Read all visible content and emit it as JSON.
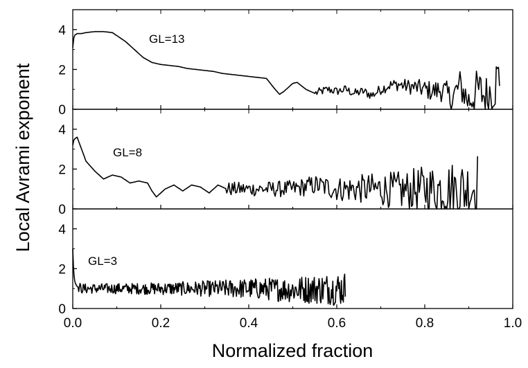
{
  "chart_data": {
    "type": "line",
    "xlabel": "Normalized fraction",
    "ylabel": "Local Avrami exponent",
    "xlim": [
      0.0,
      1.0
    ],
    "x_ticks": [
      "0.0",
      "0.2",
      "0.4",
      "0.6",
      "0.8",
      "1.0"
    ],
    "panels": [
      {
        "label": "GL=13",
        "ylim": [
          0,
          5
        ],
        "y_ticks": [
          "0",
          "2",
          "4"
        ],
        "end_x": 0.97,
        "noise_start": 0.55,
        "points": [
          [
            0.0,
            3.1
          ],
          [
            0.003,
            3.7
          ],
          [
            0.01,
            3.8
          ],
          [
            0.02,
            3.8
          ],
          [
            0.03,
            3.85
          ],
          [
            0.05,
            3.9
          ],
          [
            0.07,
            3.9
          ],
          [
            0.09,
            3.85
          ],
          [
            0.1,
            3.7
          ],
          [
            0.12,
            3.4
          ],
          [
            0.14,
            3.0
          ],
          [
            0.16,
            2.6
          ],
          [
            0.18,
            2.35
          ],
          [
            0.2,
            2.25
          ],
          [
            0.22,
            2.2
          ],
          [
            0.24,
            2.15
          ],
          [
            0.26,
            2.05
          ],
          [
            0.28,
            2.0
          ],
          [
            0.3,
            1.95
          ],
          [
            0.32,
            1.9
          ],
          [
            0.34,
            1.8
          ],
          [
            0.36,
            1.75
          ],
          [
            0.38,
            1.7
          ],
          [
            0.4,
            1.65
          ],
          [
            0.42,
            1.6
          ],
          [
            0.44,
            1.55
          ],
          [
            0.46,
            1.0
          ],
          [
            0.47,
            0.75
          ],
          [
            0.48,
            0.9
          ],
          [
            0.5,
            1.3
          ],
          [
            0.51,
            1.35
          ],
          [
            0.53,
            1.0
          ],
          [
            0.55,
            0.8
          ],
          [
            0.58,
            1.0
          ],
          [
            0.6,
            0.9
          ],
          [
            0.62,
            1.0
          ],
          [
            0.64,
            0.8
          ],
          [
            0.66,
            0.9
          ],
          [
            0.68,
            0.7
          ],
          [
            0.7,
            1.0
          ],
          [
            0.72,
            1.2
          ],
          [
            0.74,
            1.25
          ],
          [
            0.76,
            1.15
          ],
          [
            0.78,
            1.1
          ],
          [
            0.8,
            1.0
          ],
          [
            0.82,
            0.9
          ],
          [
            0.84,
            1.0
          ],
          [
            0.86,
            0.5
          ],
          [
            0.88,
            1.2
          ],
          [
            0.9,
            0.4
          ],
          [
            0.92,
            1.0
          ],
          [
            0.94,
            0.6
          ],
          [
            0.96,
            1.3
          ],
          [
            0.97,
            1.6
          ]
        ]
      },
      {
        "label": "GL=8",
        "ylim": [
          0,
          5
        ],
        "y_ticks": [
          "0",
          "2",
          "4"
        ],
        "end_x": 0.92,
        "noise_start": 0.35,
        "points": [
          [
            0.0,
            3.2
          ],
          [
            0.003,
            3.5
          ],
          [
            0.01,
            3.6
          ],
          [
            0.02,
            3.0
          ],
          [
            0.03,
            2.4
          ],
          [
            0.05,
            1.9
          ],
          [
            0.07,
            1.5
          ],
          [
            0.09,
            1.7
          ],
          [
            0.11,
            1.6
          ],
          [
            0.13,
            1.3
          ],
          [
            0.15,
            1.4
          ],
          [
            0.17,
            1.3
          ],
          [
            0.18,
            0.9
          ],
          [
            0.19,
            0.6
          ],
          [
            0.21,
            1.0
          ],
          [
            0.23,
            1.2
          ],
          [
            0.25,
            0.9
          ],
          [
            0.27,
            1.2
          ],
          [
            0.29,
            1.1
          ],
          [
            0.31,
            0.8
          ],
          [
            0.33,
            1.2
          ],
          [
            0.35,
            1.0
          ],
          [
            0.4,
            1.0
          ],
          [
            0.45,
            1.0
          ],
          [
            0.5,
            1.0
          ],
          [
            0.55,
            1.2
          ],
          [
            0.6,
            1.0
          ],
          [
            0.65,
            1.0
          ],
          [
            0.7,
            1.0
          ],
          [
            0.75,
            0.9
          ],
          [
            0.8,
            1.0
          ],
          [
            0.85,
            1.0
          ],
          [
            0.9,
            1.0
          ],
          [
            0.92,
            1.3
          ]
        ]
      },
      {
        "label": "GL=3",
        "ylim": [
          0,
          5
        ],
        "y_ticks": [
          "0",
          "2",
          "4"
        ],
        "end_x": 0.62,
        "noise_start": 0.012,
        "points": [
          [
            0.0,
            3.0
          ],
          [
            0.002,
            1.8
          ],
          [
            0.005,
            1.3
          ],
          [
            0.01,
            1.1
          ],
          [
            0.02,
            1.0
          ],
          [
            0.1,
            1.0
          ],
          [
            0.2,
            1.0
          ],
          [
            0.3,
            1.0
          ],
          [
            0.4,
            1.0
          ],
          [
            0.5,
            0.95
          ],
          [
            0.6,
            1.0
          ],
          [
            0.62,
            1.0
          ]
        ]
      }
    ]
  }
}
